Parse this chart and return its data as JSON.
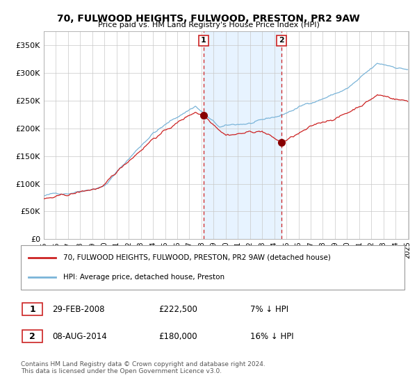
{
  "title": "70, FULWOOD HEIGHTS, FULWOOD, PRESTON, PR2 9AW",
  "subtitle": "Price paid vs. HM Land Registry's House Price Index (HPI)",
  "legend_line1": "70, FULWOOD HEIGHTS, FULWOOD, PRESTON, PR2 9AW (detached house)",
  "legend_line2": "HPI: Average price, detached house, Preston",
  "sale1_date": "29-FEB-2008",
  "sale1_year": 2008.17,
  "sale1_price_text": "£222,500",
  "sale1_hpi_text": "7% ↓ HPI",
  "sale2_date": "08-AUG-2014",
  "sale2_year": 2014.6,
  "sale2_price_text": "£180,000",
  "sale2_hpi_text": "16% ↓ HPI",
  "footer": "Contains HM Land Registry data © Crown copyright and database right 2024.\nThis data is licensed under the Open Government Licence v3.0.",
  "hpi_color": "#7ab4d8",
  "sale_color": "#cc2222",
  "marker_color": "#880000",
  "dashed_color": "#cc2222",
  "shade_color": "#ddeeff",
  "ylim": [
    0,
    375000
  ],
  "yticks": [
    0,
    50000,
    100000,
    150000,
    200000,
    250000,
    300000,
    350000
  ],
  "year_start": 1995,
  "year_end": 2025
}
